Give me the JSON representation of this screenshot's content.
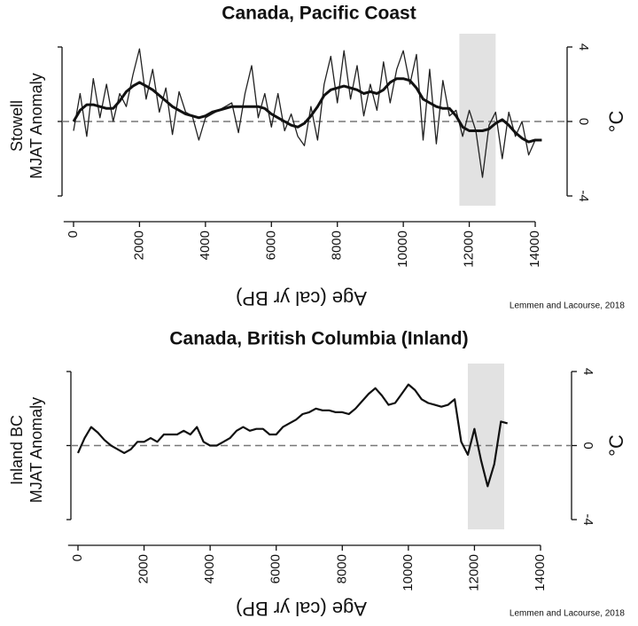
{
  "chart_data": [
    {
      "type": "line",
      "title": "Canada, Pacific Coast",
      "ylabel": [
        "Stowell",
        "MJAT Anomaly"
      ],
      "y2label": "°C",
      "xlabel": "Age (cal yr BP)",
      "source": "Lemmen and Lacourse, 2018",
      "xlim": [
        -300,
        15500
      ],
      "xticks": [
        0,
        2000,
        4000,
        6000,
        8000,
        10000,
        12000,
        14000
      ],
      "ylim": [
        -4,
        4
      ],
      "yticks": [
        4,
        0,
        -4
      ],
      "zero_line": true,
      "shaded_region": [
        11700,
        12800
      ],
      "x": [
        0,
        200,
        400,
        600,
        800,
        1000,
        1200,
        1400,
        1600,
        1800,
        2000,
        2200,
        2400,
        2600,
        2800,
        3000,
        3200,
        3400,
        3600,
        3800,
        4000,
        4200,
        4400,
        4600,
        4800,
        5000,
        5200,
        5400,
        5600,
        5800,
        6000,
        6200,
        6400,
        6600,
        6800,
        7000,
        7200,
        7400,
        7600,
        7800,
        8000,
        8200,
        8400,
        8600,
        8800,
        9000,
        9200,
        9400,
        9600,
        9800,
        10000,
        10200,
        10400,
        10600,
        10800,
        11000,
        11200,
        11400,
        11600,
        11800,
        12000,
        12200,
        12400,
        12600,
        12800,
        13000,
        13200,
        13400,
        13600,
        13800,
        14000,
        14200
      ],
      "series": [
        {
          "color": "#222222",
          "width": 1.3,
          "values": [
            -0.5,
            1.5,
            -0.8,
            2.3,
            0.2,
            2.0,
            0,
            1.5,
            0.8,
            2.5,
            3.9,
            1.2,
            2.8,
            0.5,
            1.8,
            -0.7,
            1.6,
            0.5,
            0.3,
            -1.0,
            0.2,
            0.4,
            0.6,
            0.8,
            1.0,
            -0.6,
            1.5,
            3.0,
            0.2,
            1.5,
            -0.3,
            1.5,
            -0.5,
            0.4,
            -0.8,
            -1.3,
            0.8,
            -1.0,
            2.0,
            3.5,
            1.0,
            3.8,
            1.2,
            3.0,
            0.3,
            2.0,
            0.6,
            3.2,
            1.0,
            2.8,
            3.8,
            2.0,
            3.6,
            -1.0,
            2.8,
            -1.2,
            2.2,
            0.3,
            0.6,
            -0.8,
            0.6,
            -0.5,
            -3.0,
            -0.2,
            0.5,
            -2.0,
            0.5,
            -0.8,
            0,
            -1.8,
            -1.0,
            -1.0
          ]
        },
        {
          "color": "#111111",
          "width": 3,
          "values": [
            0,
            0.6,
            0.9,
            0.9,
            0.8,
            0.7,
            0.7,
            1.1,
            1.6,
            1.9,
            2.1,
            1.9,
            1.7,
            1.4,
            1.1,
            0.8,
            0.6,
            0.4,
            0.3,
            0.2,
            0.3,
            0.5,
            0.6,
            0.7,
            0.8,
            0.8,
            0.8,
            0.8,
            0.8,
            0.7,
            0.4,
            0.2,
            0,
            -0.2,
            -0.3,
            -0.1,
            0.3,
            0.8,
            1.4,
            1.7,
            1.8,
            1.9,
            1.8,
            1.7,
            1.5,
            1.6,
            1.5,
            1.7,
            2.1,
            2.3,
            2.3,
            2.2,
            1.8,
            1.2,
            1.0,
            0.8,
            0.7,
            0.7,
            0.3,
            -0.3,
            -0.5,
            -0.5,
            -0.5,
            -0.4,
            -0.1,
            0.1,
            -0.2,
            -0.6,
            -0.9,
            -1.1,
            -1.0,
            -1.0
          ]
        }
      ]
    },
    {
      "type": "line",
      "title": "Canada, British Columbia (Inland)",
      "ylabel": [
        "Inland BC",
        "MJAT Anomaly"
      ],
      "y2label": "°C",
      "xlabel": "Age (cal yr BP)",
      "source": "Lemmen and Lacourse, 2018",
      "xlim": [
        -300,
        15500
      ],
      "xticks": [
        0,
        2000,
        4000,
        6000,
        8000,
        10000,
        12000,
        14000
      ],
      "ylim": [
        -4,
        4
      ],
      "yticks": [
        4,
        0,
        -4
      ],
      "zero_line": true,
      "shaded_region": [
        11800,
        12900
      ],
      "x": [
        0,
        200,
        400,
        600,
        800,
        1000,
        1200,
        1400,
        1600,
        1800,
        2000,
        2200,
        2400,
        2600,
        2800,
        3000,
        3200,
        3400,
        3600,
        3800,
        4000,
        4200,
        4400,
        4600,
        4800,
        5000,
        5200,
        5400,
        5600,
        5800,
        6000,
        6200,
        6400,
        6600,
        6800,
        7000,
        7200,
        7400,
        7600,
        7800,
        8000,
        8200,
        8400,
        8600,
        8800,
        9000,
        9200,
        9400,
        9600,
        9800,
        10000,
        10200,
        10400,
        10600,
        10800,
        11000,
        11200,
        11400,
        11600,
        11800,
        12000,
        12200,
        12400,
        12600,
        12800,
        13000
      ],
      "series": [
        {
          "color": "#111111",
          "width": 2.2,
          "values": [
            -0.4,
            0.4,
            1.0,
            0.7,
            0.3,
            0,
            -0.2,
            -0.4,
            -0.2,
            0.2,
            0.2,
            0.4,
            0.2,
            0.6,
            0.6,
            0.6,
            0.8,
            0.6,
            1.0,
            0.2,
            0,
            0,
            0.2,
            0.4,
            0.8,
            1.0,
            0.8,
            0.9,
            0.9,
            0.6,
            0.6,
            1.0,
            1.2,
            1.4,
            1.7,
            1.8,
            2.0,
            1.9,
            1.9,
            1.8,
            1.8,
            1.7,
            2.0,
            2.4,
            2.8,
            3.1,
            2.7,
            2.2,
            2.3,
            2.8,
            3.3,
            3.0,
            2.5,
            2.3,
            2.2,
            2.1,
            2.2,
            2.5,
            0.2,
            -0.5,
            0.9,
            -0.8,
            -2.2,
            -1.0,
            1.3,
            1.2
          ]
        }
      ]
    }
  ]
}
